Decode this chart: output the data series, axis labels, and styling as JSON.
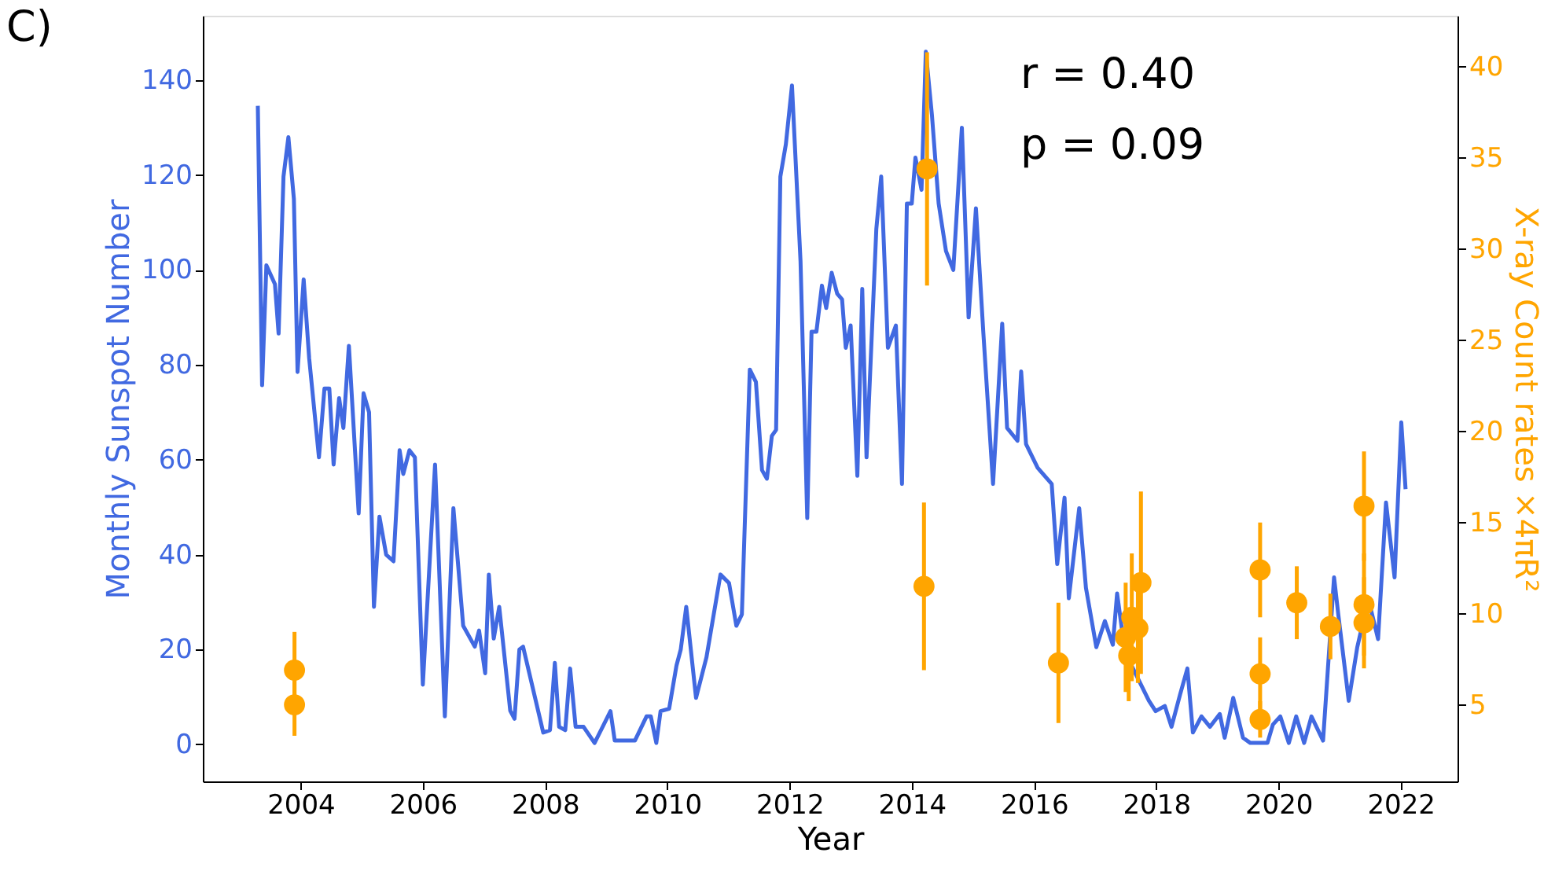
{
  "chart_data": {
    "type": "line",
    "xlabel": "Year",
    "ylabel": "Monthly Sunspot Number",
    "y2label": "X-ray Count rates ×4πR²",
    "annotations": [
      "C)",
      "r = 0.40",
      "p = 0.09"
    ],
    "xlim": [
      2002.4,
      2022.93
    ],
    "xticks": [
      2004,
      2006,
      2008,
      2010,
      2012,
      2014,
      2016,
      2018,
      2020,
      2022
    ],
    "ylim": [
      -7.8,
      153.6
    ],
    "yticks": [
      0,
      20,
      40,
      60,
      80,
      100,
      120,
      140
    ],
    "y2lim": [
      0.8,
      42.8
    ],
    "y2ticks": [
      5,
      10,
      15,
      20,
      25,
      30,
      35,
      40
    ],
    "grid": false,
    "series": [
      {
        "type": "line",
        "color": "#4169e1",
        "line_style": "solid",
        "marker": "none",
        "x": [
          2003.3,
          2003.37,
          2003.44,
          2003.58,
          2003.64,
          2003.72,
          2003.8,
          2003.89,
          2003.95,
          2004.05,
          2004.14,
          2004.3,
          2004.39,
          2004.47,
          2004.54,
          2004.63,
          2004.7,
          2004.79,
          2004.95,
          2005.03,
          2005.12,
          2005.2,
          2005.29,
          2005.4,
          2005.52,
          2005.62,
          2005.68,
          2005.78,
          2005.87,
          2006.0,
          2006.2,
          2006.36,
          2006.5,
          2006.66,
          2006.85,
          2006.92,
          2007.02,
          2007.08,
          2007.16,
          2007.25,
          2007.43,
          2007.5,
          2007.58,
          2007.64,
          2007.97,
          2008.08,
          2008.16,
          2008.23,
          2008.33,
          2008.41,
          2008.5,
          2008.63,
          2008.81,
          2009.07,
          2009.14,
          2009.47,
          2009.66,
          2009.73,
          2009.82,
          2009.89,
          2010.03,
          2010.15,
          2010.22,
          2010.31,
          2010.47,
          2010.64,
          2010.87,
          2011.01,
          2011.13,
          2011.22,
          2011.35,
          2011.45,
          2011.55,
          2011.63,
          2011.71,
          2011.78,
          2011.85,
          2011.94,
          2012.04,
          2012.18,
          2012.29,
          2012.36,
          2012.44,
          2012.53,
          2012.6,
          2012.69,
          2012.78,
          2012.86,
          2012.92,
          2013.0,
          2013.11,
          2013.19,
          2013.26,
          2013.42,
          2013.5,
          2013.61,
          2013.74,
          2013.84,
          2013.92,
          2014.0,
          2014.06,
          2014.16,
          2014.23,
          2014.33,
          2014.44,
          2014.56,
          2014.68,
          2014.82,
          2014.93,
          2015.05,
          2015.17,
          2015.33,
          2015.48,
          2015.56,
          2015.73,
          2015.79,
          2015.87,
          2016.06,
          2016.29,
          2016.38,
          2016.5,
          2016.57,
          2016.74,
          2016.85,
          2017.02,
          2017.16,
          2017.29,
          2017.36,
          2017.49,
          2017.88,
          2017.99,
          2018.14,
          2018.25,
          2018.39,
          2018.51,
          2018.6,
          2018.74,
          2018.88,
          2019.04,
          2019.12,
          2019.26,
          2019.42,
          2019.54,
          2019.82,
          2019.91,
          2020.03,
          2020.17,
          2020.29,
          2020.42,
          2020.54,
          2020.73,
          2020.91,
          2020.98,
          2021.15,
          2021.29,
          2021.47,
          2021.63,
          2021.76,
          2021.9,
          2022.01,
          2022.08
        ],
        "values": [
          134.6,
          75.7,
          101,
          97,
          86.6,
          119.7,
          128,
          115,
          78.5,
          98,
          81.4,
          60.5,
          75,
          75,
          59,
          73,
          66.7,
          84,
          48.7,
          74,
          70,
          29,
          48,
          40,
          38.6,
          62,
          57,
          62,
          60.5,
          12.6,
          59,
          5.9,
          49.8,
          25,
          20.6,
          24,
          15,
          35.8,
          22.3,
          29,
          7.1,
          5.4,
          20,
          20.6,
          2.5,
          3,
          17.2,
          3.7,
          3,
          16,
          3.7,
          3.7,
          0.3,
          7,
          0.8,
          0.8,
          5.9,
          5.9,
          0.3,
          7,
          7.5,
          16.6,
          20,
          29,
          9.8,
          18.3,
          35.8,
          34,
          25,
          27.4,
          79,
          76.4,
          57.8,
          56,
          65,
          66.3,
          119.7,
          126.5,
          138.9,
          101.8,
          47.7,
          87,
          87,
          96.7,
          92,
          99.4,
          95,
          93.8,
          83.6,
          88.3,
          56.6,
          96,
          60.5,
          108.6,
          119.7,
          83.6,
          88.3,
          54.9,
          114,
          114,
          123.7,
          116.9,
          146,
          132.7,
          114,
          104,
          100,
          130,
          90,
          113,
          87,
          54.9,
          88.7,
          66.7,
          64,
          78.6,
          63.3,
          58.3,
          54.9,
          38,
          52,
          30.8,
          49.8,
          33,
          20.5,
          26,
          21,
          31.8,
          19.4,
          9.2,
          7,
          8.1,
          3.7,
          10.5,
          16,
          2.5,
          5.9,
          3.7,
          6.4,
          1.4,
          9.8,
          1.4,
          0.3,
          0.3,
          4.2,
          5.9,
          0.3,
          5.9,
          0.3,
          5.9,
          0.8,
          35.2,
          27.3,
          9.2,
          20.5,
          30.7,
          22.2,
          51,
          35.2,
          67.9,
          53.8
        ]
      },
      {
        "type": "scatter",
        "axis": "y2",
        "color": "#ffa500",
        "marker": "circle",
        "x": [
          2003.9,
          2003.9,
          2014.25,
          2014.2,
          2016.4,
          2017.5,
          2017.55,
          2017.6,
          2017.7,
          2017.75,
          2019.7,
          2019.7,
          2019.7,
          2020.3,
          2020.85,
          2021.4,
          2021.4,
          2021.4
        ],
        "values": [
          6.9,
          5.0,
          34.4,
          11.5,
          7.3,
          8.7,
          7.7,
          9.8,
          9.2,
          11.7,
          12.4,
          6.7,
          4.2,
          10.6,
          9.3,
          15.9,
          10.5,
          9.5
        ],
        "errors": [
          2.1,
          1.7,
          6.4,
          4.6,
          3.3,
          3.0,
          2.5,
          3.5,
          3.0,
          5.0,
          2.6,
          2.0,
          1.0,
          2.0,
          1.8,
          3.0,
          2.8,
          2.5
        ]
      }
    ]
  }
}
